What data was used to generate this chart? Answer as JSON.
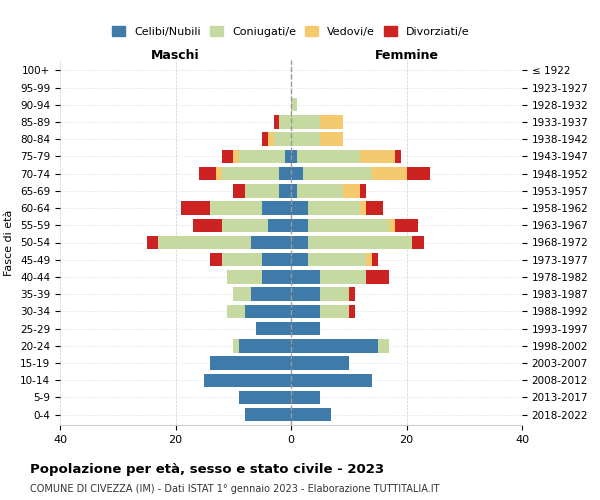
{
  "age_groups": [
    "0-4",
    "5-9",
    "10-14",
    "15-19",
    "20-24",
    "25-29",
    "30-34",
    "35-39",
    "40-44",
    "45-49",
    "50-54",
    "55-59",
    "60-64",
    "65-69",
    "70-74",
    "75-79",
    "80-84",
    "85-89",
    "90-94",
    "95-99",
    "100+"
  ],
  "birth_years": [
    "2018-2022",
    "2013-2017",
    "2008-2012",
    "2003-2007",
    "1998-2002",
    "1993-1997",
    "1988-1992",
    "1983-1987",
    "1978-1982",
    "1973-1977",
    "1968-1972",
    "1963-1967",
    "1958-1962",
    "1953-1957",
    "1948-1952",
    "1943-1947",
    "1938-1942",
    "1933-1937",
    "1928-1932",
    "1923-1927",
    "≤ 1922"
  ],
  "colors": {
    "celibi": "#3e7aaa",
    "coniugati": "#c5d9a0",
    "vedovi": "#f5c96e",
    "divorziati": "#cc2222"
  },
  "males": {
    "celibi": [
      8,
      9,
      15,
      14,
      9,
      6,
      8,
      7,
      5,
      5,
      7,
      4,
      5,
      2,
      2,
      1,
      0,
      0,
      0,
      0,
      0
    ],
    "coniugati": [
      0,
      0,
      0,
      0,
      1,
      0,
      3,
      3,
      6,
      7,
      16,
      8,
      9,
      6,
      10,
      8,
      3,
      2,
      0,
      0,
      0
    ],
    "vedovi": [
      0,
      0,
      0,
      0,
      0,
      0,
      0,
      0,
      0,
      0,
      0,
      0,
      0,
      0,
      1,
      1,
      1,
      0,
      0,
      0,
      0
    ],
    "divorziati": [
      0,
      0,
      0,
      0,
      0,
      0,
      0,
      0,
      0,
      2,
      2,
      5,
      5,
      2,
      3,
      2,
      1,
      1,
      0,
      0,
      0
    ]
  },
  "females": {
    "celibi": [
      7,
      5,
      14,
      10,
      15,
      5,
      5,
      5,
      5,
      3,
      3,
      3,
      3,
      1,
      2,
      1,
      0,
      0,
      0,
      0,
      0
    ],
    "coniugati": [
      0,
      0,
      0,
      0,
      2,
      0,
      5,
      5,
      8,
      10,
      18,
      14,
      9,
      8,
      12,
      11,
      5,
      5,
      1,
      0,
      0
    ],
    "vedovi": [
      0,
      0,
      0,
      0,
      0,
      0,
      0,
      0,
      0,
      1,
      0,
      1,
      1,
      3,
      6,
      6,
      4,
      4,
      0,
      0,
      0
    ],
    "divorziati": [
      0,
      0,
      0,
      0,
      0,
      0,
      1,
      1,
      4,
      1,
      2,
      4,
      3,
      1,
      4,
      1,
      0,
      0,
      0,
      0,
      0
    ]
  },
  "xlim": 40,
  "xlabel_left": "Maschi",
  "xlabel_right": "Femmine",
  "ylabel_left": "Fasce di età",
  "title": "Popolazione per età, sesso e stato civile - 2023",
  "subtitle": "COMUNE DI CIVEZZA (IM) - Dati ISTAT 1° gennaio 2023 - Elaborazione TUTTITALIA.IT",
  "legend_labels": [
    "Celibi/Nubili",
    "Coniugati/e",
    "Vedovi/e",
    "Divorziati/e"
  ]
}
